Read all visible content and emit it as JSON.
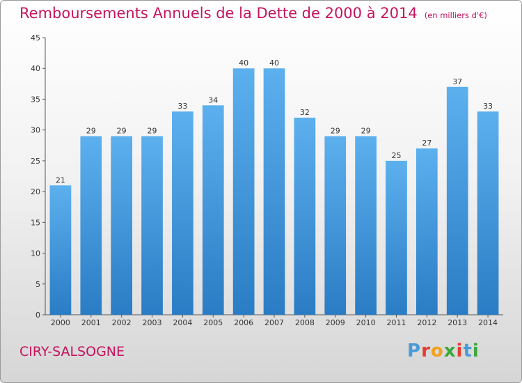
{
  "chart_data": {
    "type": "bar",
    "title": "Remboursements Annuels de la Dette de 2000 à 2014",
    "subtitle": "(en milliers d'€)",
    "xlabel": "",
    "ylabel": "",
    "categories": [
      "2000",
      "2001",
      "2002",
      "2003",
      "2004",
      "2005",
      "2006",
      "2007",
      "2008",
      "2009",
      "2010",
      "2011",
      "2012",
      "2013",
      "2014"
    ],
    "values": [
      21,
      29,
      29,
      29,
      33,
      34,
      40,
      40,
      32,
      29,
      29,
      25,
      27,
      37,
      33
    ],
    "ylim": [
      0,
      45
    ],
    "yticks": [
      0,
      5,
      10,
      15,
      20,
      25,
      30,
      35,
      40,
      45
    ],
    "grid": false,
    "bar_color": "#4a9fe0"
  },
  "footer": {
    "commune": "CIRY-SALSOGNE",
    "logo_letters": [
      "P",
      "r",
      "o",
      "x",
      "i",
      "t",
      "i"
    ],
    "logo_colors": [
      "#4a9bd6",
      "#e63d2f",
      "#f0a21a",
      "#3aa83a",
      "#e63d2f",
      "#4a9bd6",
      "#3aa83a"
    ]
  }
}
